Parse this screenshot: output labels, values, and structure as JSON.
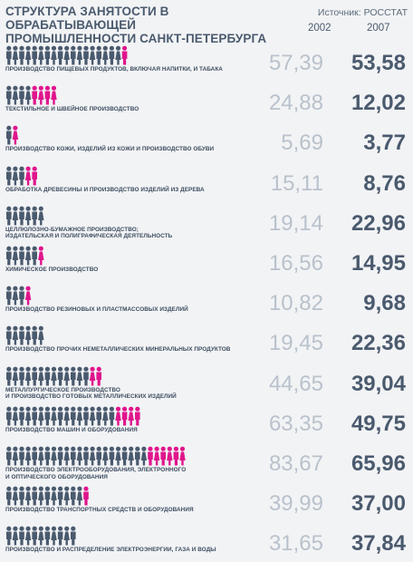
{
  "header": {
    "title_line1": "СТРУКТУРА ЗАНЯТОСТИ В ОБРАБАТЫВАЮЩЕЙ",
    "title_line2": "ПРОМЫШЛЕННОСТИ САНКТ-ПЕТЕРБУРГА",
    "source": "Источник: РОССТАТ",
    "year1": "2002",
    "year2": "2007"
  },
  "colors": {
    "pink": "#e0158c",
    "blue": "#4a5a6e",
    "value2002": "#b9c2cc",
    "value2007": "#4a5a6e"
  },
  "chart_data": {
    "type": "table",
    "title": "СТРУКТУРА ЗАНЯТОСТИ В ОБРАБАТЫВАЮЩЕЙ ПРОМЫШЛЕННОСТИ САНКТ-ПЕТЕРБУРГА",
    "columns": [
      "2002",
      "2007"
    ],
    "rows": [
      {
        "label": "ПРОИЗВОДСТВО ПИЩЕВЫХ ПРОДУКТОВ, ВКЛЮЧАЯ НАПИТКИ, И ТАБАКА",
        "v2002": "57,39",
        "v2007": "53,58",
        "n2002": 57.39,
        "n2007": 53.58
      },
      {
        "label": "ТЕКСТИЛЬНОЕ И ШВЕЙНОЕ ПРОИЗВОДСТВО",
        "v2002": "24,88",
        "v2007": "12,02",
        "n2002": 24.88,
        "n2007": 12.02
      },
      {
        "label": "ПРОИЗВОДСТВО КОЖИ, ИЗДЕЛИЙ ИЗ КОЖИ И ПРОИЗВОДСТВО ОБУВИ",
        "v2002": "5,69",
        "v2007": "3,77",
        "n2002": 5.69,
        "n2007": 3.77
      },
      {
        "label": "ОБРАБОТКА ДРЕВЕСИНЫ И ПРОИЗВОДСТВО ИЗДЕЛИЙ ИЗ ДЕРЕВА",
        "v2002": "15,11",
        "v2007": "8,76",
        "n2002": 15.11,
        "n2007": 8.76
      },
      {
        "label": "ЦЕЛЛЮЛОЗНО-БУМАЖНОЕ ПРОИЗВОДСТВО;\nИЗДАТЕЛЬСКАЯ И ПОЛИГРАФИЧЕСКАЯ ДЕЯТЕЛЬНОСТЬ",
        "v2002": "19,14",
        "v2007": "22,96",
        "n2002": 19.14,
        "n2007": 22.96
      },
      {
        "label": "ХИМИЧЕСКОЕ ПРОИЗВОДСТВО",
        "v2002": "16,56",
        "v2007": "14,95",
        "n2002": 16.56,
        "n2007": 14.95
      },
      {
        "label": "ПРОИЗВОДСТВО РЕЗИНОВЫХ И ПЛАСТМАССОВЫХ ИЗДЕЛИЙ",
        "v2002": "10,82",
        "v2007": "9,68",
        "n2002": 10.82,
        "n2007": 9.68
      },
      {
        "label": "ПРОИЗВОДСТВО ПРОЧИХ НЕМЕТАЛЛИЧЕСКИХ МИНЕРАЛЬНЫХ ПРОДУКТОВ",
        "v2002": "19,45",
        "v2007": "22,36",
        "n2002": 19.45,
        "n2007": 22.36
      },
      {
        "label": "МЕТАЛЛУРГИЧЕСКОЕ ПРОИЗВОДСТВО\nИ ПРОИЗВОДСТВО ГОТОВЫХ МЕТАЛЛИЧЕСКИХ ИЗДЕЛИЙ",
        "v2002": "44,65",
        "v2007": "39,04",
        "n2002": 44.65,
        "n2007": 39.04
      },
      {
        "label": "ПРОИЗВОДСТВО МАШИН И ОБОРУДОВАНИЯ",
        "v2002": "63,35",
        "v2007": "49,75",
        "n2002": 63.35,
        "n2007": 49.75
      },
      {
        "label": "ПРОИЗВОДСТВО ЭЛЕКТРООБОРУДОВАНИЯ, ЭЛЕКТРОННОГО\nИ ОПТИЧЕСКОГО ОБОРУДОВАНИЯ",
        "v2002": "83,67",
        "v2007": "65,96",
        "n2002": 83.67,
        "n2007": 65.96
      },
      {
        "label": "ПРОИЗВОДСТВО ТРАНСПОРТНЫХ СРЕДСТВ И ОБОРУДОВАНИЯ",
        "v2002": "39,99",
        "v2007": "37,00",
        "n2002": 39.99,
        "n2007": 37.0
      },
      {
        "label": "ПРОИЗВОДСТВО И РАСПРЕДЕЛЕНИЕ ЭЛЕКТРОЭНЕРГИИ, ГАЗА И ВОДЫ",
        "v2002": "31,65",
        "v2007": "37,84",
        "n2002": 31.65,
        "n2007": 37.84
      }
    ]
  }
}
